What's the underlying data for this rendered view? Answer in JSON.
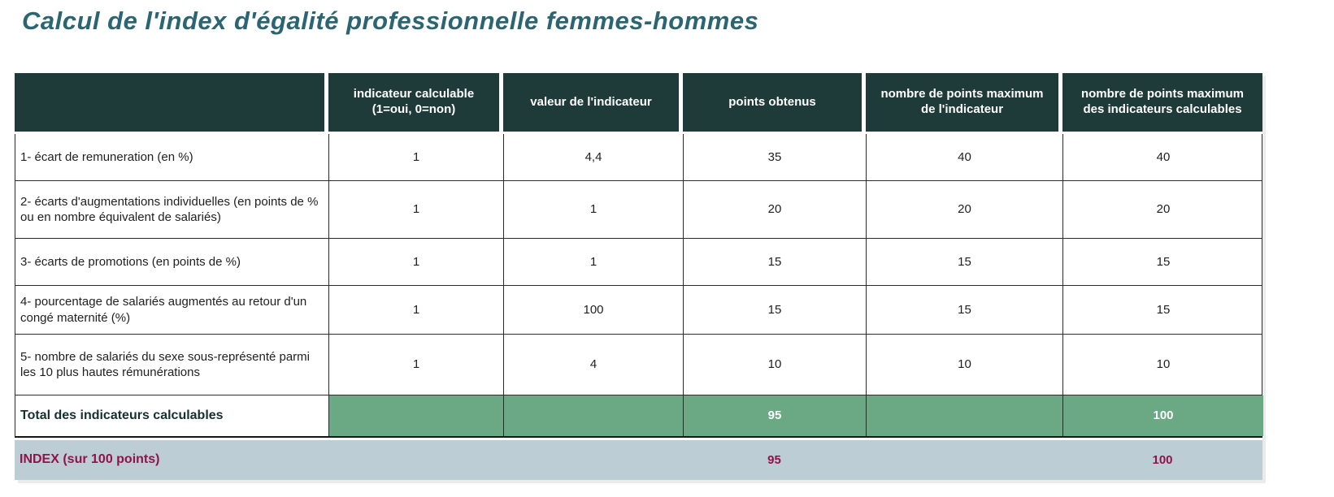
{
  "page_title": "Calcul de l'index d'égalité professionnelle femmes-hommes",
  "table": {
    "headers": [
      "",
      "indicateur calculable (1=oui, 0=non)",
      "valeur de l'indicateur",
      "points obtenus",
      "nombre de points maximum de l'indicateur",
      "nombre de points maximum des indicateurs calculables"
    ],
    "rows": [
      {
        "label": "1- écart de remuneration (en %)",
        "values": [
          "1",
          "4,4",
          "35",
          "40",
          "40"
        ]
      },
      {
        "label": "2- écarts d'augmentations individuelles (en points de % ou en nombre équivalent de salariés)",
        "values": [
          "1",
          "1",
          "20",
          "20",
          "20"
        ]
      },
      {
        "label": "3- écarts de promotions (en points de %)",
        "values": [
          "1",
          "1",
          "15",
          "15",
          "15"
        ]
      },
      {
        "label": "4- pourcentage de salariés augmentés au retour d'un congé maternité (%)",
        "values": [
          "1",
          "100",
          "15",
          "15",
          "15"
        ]
      },
      {
        "label": "5- nombre de salariés du sexe sous-représenté parmi les 10 plus hautes rémunérations",
        "values": [
          "1",
          "4",
          "10",
          "10",
          "10"
        ]
      }
    ],
    "total_row": {
      "label": "Total des indicateurs calculables",
      "points_obtenus": "95",
      "points_max_calculables": "100"
    },
    "index_row": {
      "label": "INDEX (sur 100 points)",
      "points_obtenus": "95",
      "points_max_calculables": "100"
    }
  },
  "colors": {
    "header_bg": "#1e3b3a",
    "total_row_bg": "#6ba884",
    "index_row_bg": "#bccdd6",
    "index_text": "#90134a",
    "title_text": "#2a6571"
  }
}
